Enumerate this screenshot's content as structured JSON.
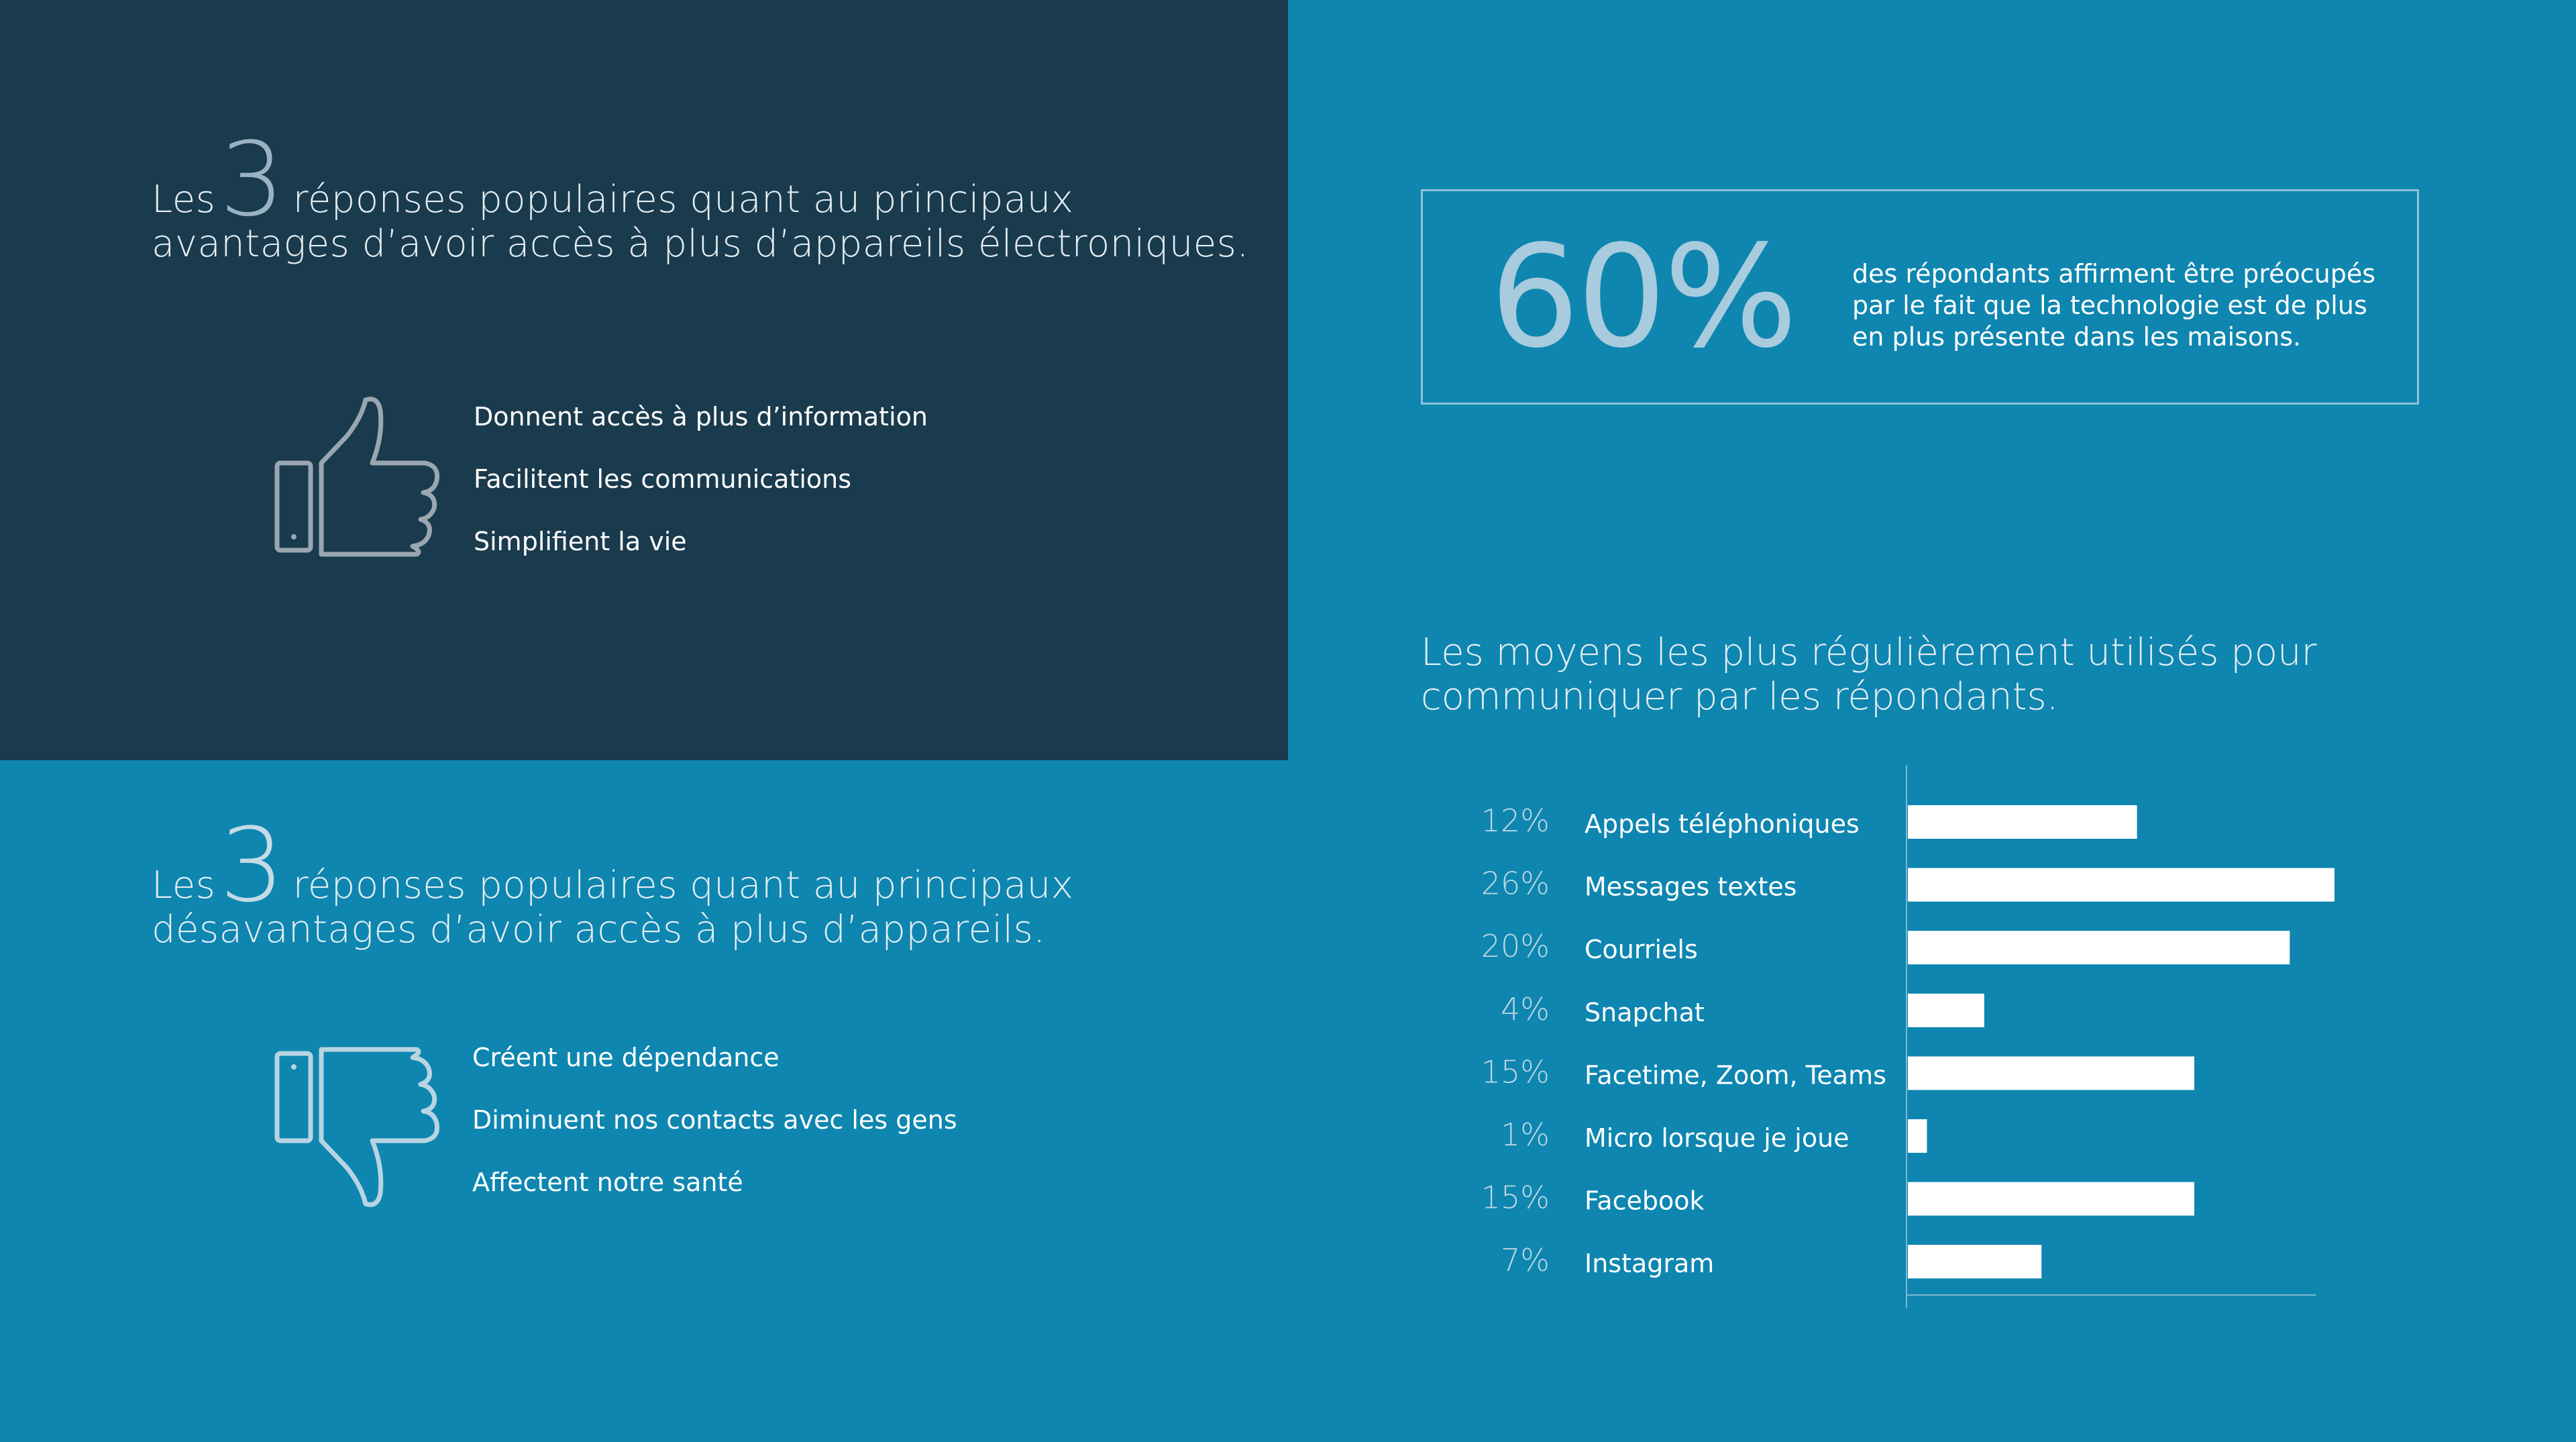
{
  "pros": {
    "prefix": "Les",
    "number": "3",
    "line1_rest": "réponses populaires quant au principaux",
    "line2": "avantages d’avoir accès à plus d’appareils électroniques.",
    "items": [
      "Donnent accès à plus d’information",
      "Facilitent les communications",
      "Simplifient la vie"
    ]
  },
  "cons": {
    "prefix": "Les",
    "number": "3",
    "line1_rest": "réponses populaires quant au principaux",
    "line2": "désavantages d’avoir accès à plus d’appareils.",
    "items": [
      "Créent une dépendance",
      "Diminuent nos contacts avec les gens",
      "Affectent notre santé"
    ]
  },
  "stat": {
    "value": "60%",
    "text": "des répondants affirment être préocupés par le fait que la technologie est de plus en plus présente dans les maisons."
  },
  "colors": {
    "background": "#0e86b0",
    "dark_panel": "#1a3b4d",
    "bar": "#ffffff",
    "percent_label": "#bcd6e3"
  },
  "icons": {
    "pros": "thumbs-up-icon",
    "cons": "thumbs-down-icon"
  },
  "chart_data": {
    "type": "bar",
    "orientation": "horizontal",
    "title": "Les moyens les plus régulièrement utilisés pour communiquer par les répondants.",
    "categories": [
      "Appels téléphoniques",
      "Messages textes",
      "Courriels",
      "Snapchat",
      "Facetime, Zoom, Teams",
      "Micro lorsque je joue",
      "Facebook",
      "Instagram"
    ],
    "values": [
      12,
      26,
      20,
      4,
      15,
      1,
      15,
      7
    ],
    "value_labels": [
      "12%",
      "26%",
      "20%",
      "4%",
      "15%",
      "1%",
      "15%",
      "7%"
    ],
    "unit": "%",
    "xlim": [
      0,
      30
    ],
    "grid": false,
    "legend": "none"
  }
}
